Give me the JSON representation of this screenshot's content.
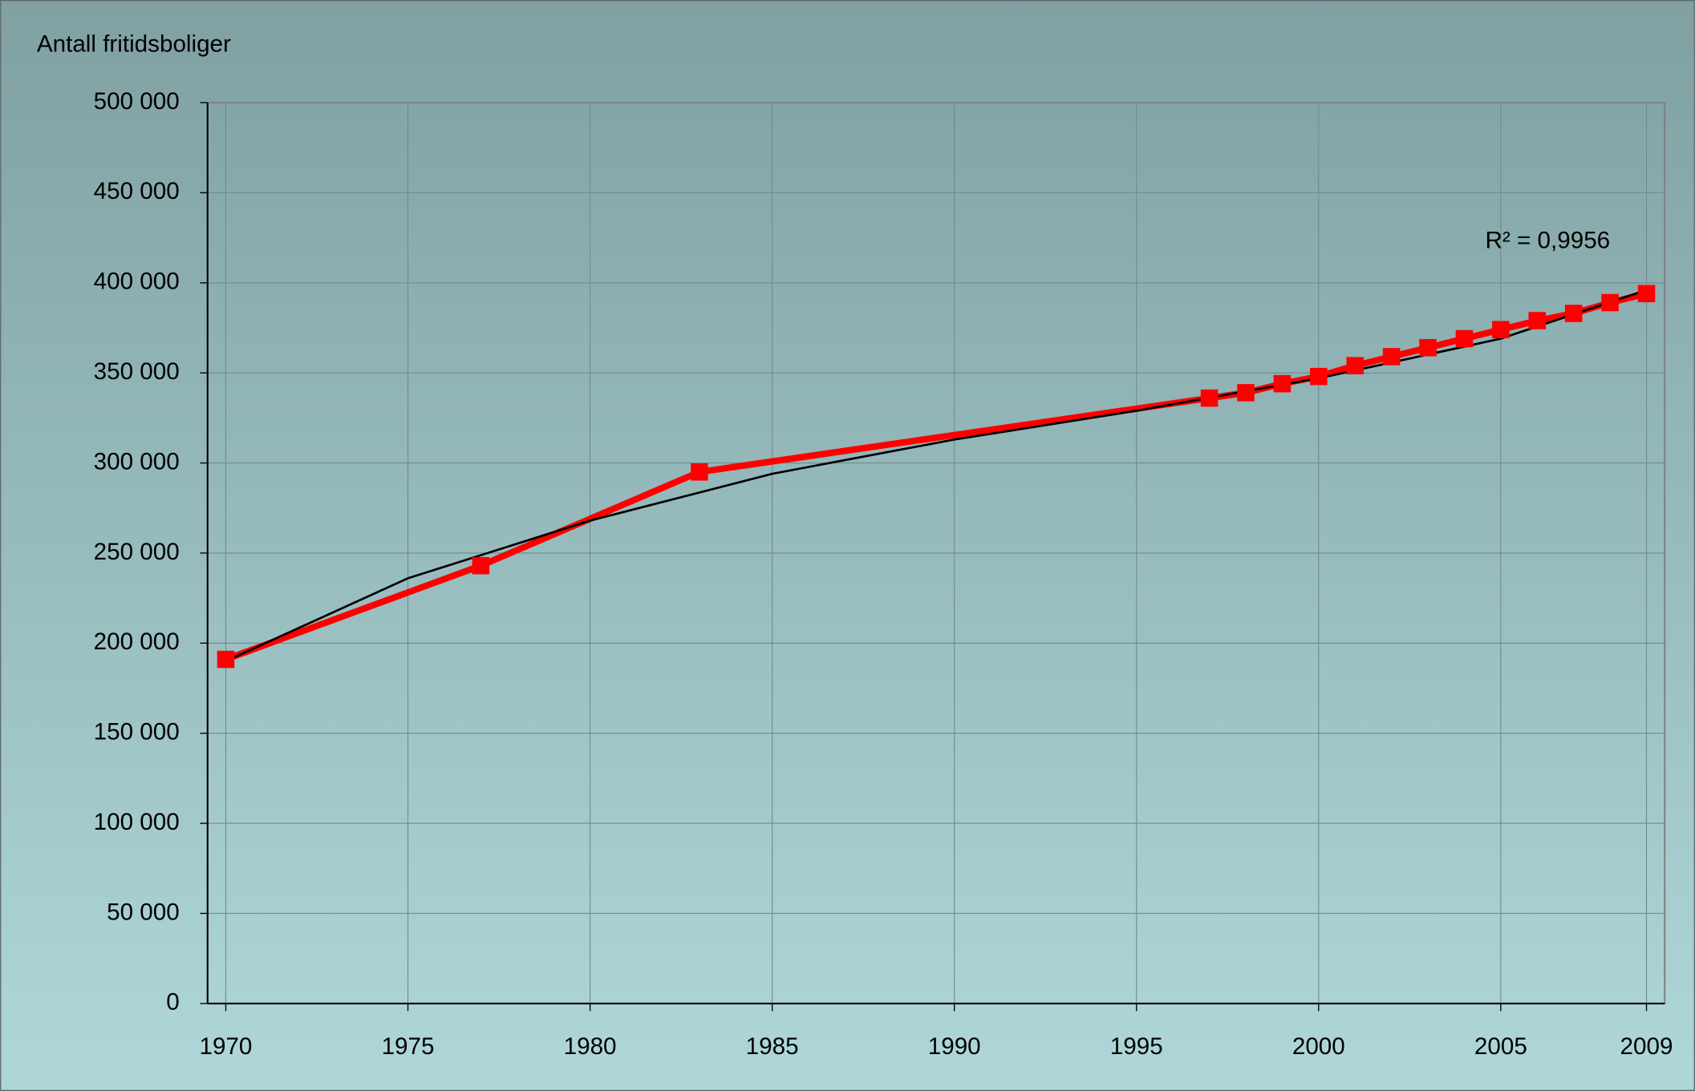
{
  "chart_data": {
    "type": "line",
    "title": "Antall fritidsboliger",
    "x": [
      1970,
      1977,
      1983,
      1997,
      1998,
      1999,
      2000,
      2001,
      2002,
      2003,
      2004,
      2005,
      2006,
      2007,
      2008,
      2009
    ],
    "series": [
      {
        "color": "#ff0000",
        "values": [
          191000,
          243000,
          295000,
          336000,
          339000,
          344000,
          348000,
          354000,
          359000,
          364000,
          369000,
          374000,
          379000,
          383000,
          389000,
          394000
        ]
      }
    ],
    "trendline": {
      "color": "#000000",
      "label": "R² = 0,9956",
      "x": [
        1970,
        1975,
        1980,
        1985,
        1990,
        1995,
        2000,
        2005,
        2009
      ],
      "values": [
        190000,
        236000,
        268000,
        294000,
        313000,
        329000,
        347000,
        369000,
        396000
      ]
    },
    "xlim": [
      1969.5,
      2009.5
    ],
    "xticks": [
      1970,
      1975,
      1980,
      1985,
      1990,
      1995,
      2000,
      2005,
      2009
    ],
    "ylim": [
      0,
      500000
    ],
    "yticks": [
      0,
      {
        "value": 50000,
        "label": "50 000"
      },
      {
        "value": 100000,
        "label": "100 000"
      },
      {
        "value": 150000,
        "label": "150 000"
      },
      {
        "value": 200000,
        "label": "200 000"
      },
      {
        "value": 250000,
        "label": "250 000"
      },
      {
        "value": 300000,
        "label": "300 000"
      },
      {
        "value": 350000,
        "label": "350 000"
      },
      {
        "value": 400000,
        "label": "400 000"
      },
      {
        "value": 450000,
        "label": "450 000"
      },
      {
        "value": 500000,
        "label": "500 000"
      }
    ],
    "grid": true
  }
}
